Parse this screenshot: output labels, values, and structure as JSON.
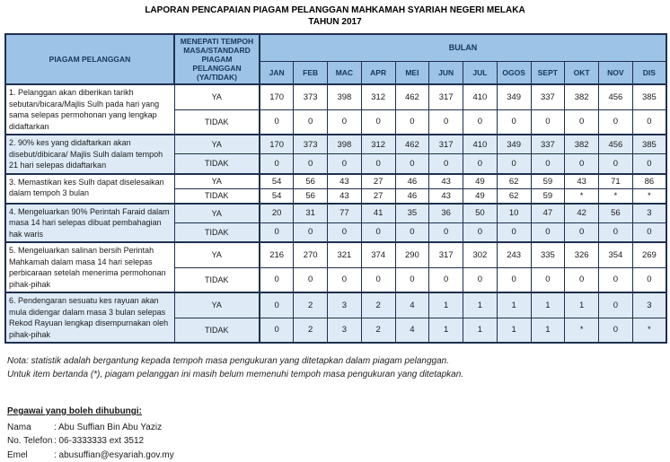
{
  "colors": {
    "header_bg": "#9DC3E6",
    "row_shade": "#DEEBF7",
    "border": "#1F3050"
  },
  "title": {
    "line1": "LAPORAN PENCAPAIAN PIAGAM PELANGGAN MAHKAMAH SYARIAH NEGERI MELAKA",
    "line2": "TAHUN 2017"
  },
  "table": {
    "col1_header": "PIAGAM PELANGGAN",
    "col2_header": "MENEPATI TEMPOH MASA/STANDARD PIAGAM PELANGGAN (YA/TIDAK)",
    "bulan_header": "BULAN",
    "months": [
      "JAN",
      "FEB",
      "MAC",
      "APR",
      "MEI",
      "JUN",
      "JUL",
      "OGOS",
      "SEPT",
      "OKT",
      "NOV",
      "DIS"
    ],
    "ya_label": "YA",
    "tidak_label": "TIDAK",
    "rows": [
      {
        "charter": "1. Pelanggan akan diberikan tarikh sebutan/bicara/Majlis Sulh pada hari yang sama selepas permohonan yang lengkap didaftarkan",
        "ya": [
          "170",
          "373",
          "398",
          "312",
          "462",
          "317",
          "410",
          "349",
          "337",
          "382",
          "456",
          "385"
        ],
        "tidak": [
          "0",
          "0",
          "0",
          "0",
          "0",
          "0",
          "0",
          "0",
          "0",
          "0",
          "0",
          "0"
        ],
        "shaded": false
      },
      {
        "charter": "2. 90% kes yang didaftarkan akan disebut/dibicara/ Majlis Sulh dalam tempoh 21 hari selepas didaftarkan",
        "ya": [
          "170",
          "373",
          "398",
          "312",
          "462",
          "317",
          "410",
          "349",
          "337",
          "382",
          "456",
          "385"
        ],
        "tidak": [
          "0",
          "0",
          "0",
          "0",
          "0",
          "0",
          "0",
          "0",
          "0",
          "0",
          "0",
          "0"
        ],
        "shaded": true
      },
      {
        "charter": "3. Memastikan kes Sulh dapat diselesaikan dalam tempoh 3 bulan",
        "ya": [
          "54",
          "56",
          "43",
          "27",
          "46",
          "43",
          "49",
          "62",
          "59",
          "43",
          "71",
          "86"
        ],
        "tidak": [
          "54",
          "56",
          "43",
          "27",
          "46",
          "43",
          "49",
          "62",
          "59",
          "*",
          "*",
          "*"
        ],
        "shaded": false
      },
      {
        "charter": "4. Mengeluarkan 90% Perintah Faraid dalam masa 14 hari selepas dibuat pembahagian hak waris",
        "ya": [
          "20",
          "31",
          "77",
          "41",
          "35",
          "36",
          "50",
          "10",
          "47",
          "42",
          "56",
          "3"
        ],
        "tidak": [
          "0",
          "0",
          "0",
          "0",
          "0",
          "0",
          "0",
          "0",
          "0",
          "0",
          "0",
          "0"
        ],
        "shaded": true
      },
      {
        "charter": "5. Mengeluarkan salinan bersih Perintah Mahkamah dalam masa 14 hari selepas perbicaraan setelah menerima permohonan pihak-pihak",
        "ya": [
          "216",
          "270",
          "321",
          "374",
          "290",
          "317",
          "302",
          "243",
          "335",
          "326",
          "354",
          "269"
        ],
        "tidak": [
          "0",
          "0",
          "0",
          "0",
          "0",
          "0",
          "0",
          "0",
          "0",
          "0",
          "0",
          "0"
        ],
        "shaded": false
      },
      {
        "charter": "6. Pendengaran sesuatu kes rayuan akan mula didengar dalam masa 3 bulan selepas Rekod Rayuan lengkap  disempurnakan oleh pihak-pihak",
        "ya": [
          "0",
          "2",
          "3",
          "2",
          "4",
          "1",
          "1",
          "1",
          "1",
          "1",
          "0",
          "3"
        ],
        "tidak": [
          "0",
          "2",
          "3",
          "2",
          "4",
          "1",
          "1",
          "1",
          "1",
          "*",
          "0",
          "*"
        ],
        "shaded": true
      }
    ]
  },
  "notes": [
    "Nota: statistik adalah bergantung kepada tempoh masa pengukuran yang ditetapkan dalam piagam pelanggan.",
    "Untuk item bertanda (*), piagam pelanggan ini masih belum memenuhi tempoh masa pengukuran yang ditetapkan."
  ],
  "contact": {
    "heading": "Pegawai yang boleh dihubungi:",
    "rows": [
      {
        "label": "Nama",
        "value": ": Abu Suffian Bin Abu Yaziz"
      },
      {
        "label": "No. Telefon",
        "value": ": 06-3333333 ext 3512"
      },
      {
        "label": "Emel",
        "value": ": abusuffian@esyariah.gov.my"
      }
    ]
  }
}
